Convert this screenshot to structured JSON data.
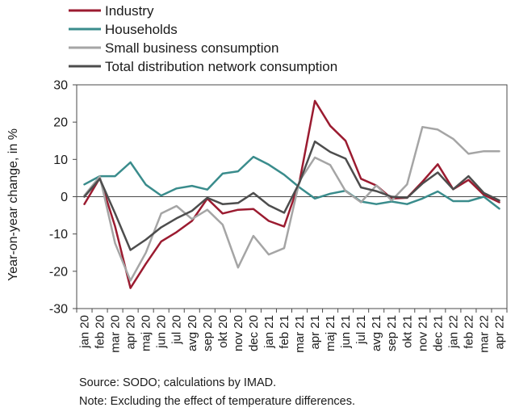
{
  "chart_data": {
    "type": "line",
    "ylabel": "Year-on-year change, in %",
    "ylim": [
      -30,
      30
    ],
    "yticks": [
      30,
      20,
      10,
      0,
      -10,
      -20,
      -30
    ],
    "grid": false,
    "legend_position": "top-left",
    "categories": [
      "jan 20",
      "feb 20",
      "mar 20",
      "apr 20",
      "maj 20",
      "jun 20",
      "jul 20",
      "avg 20",
      "sep 20",
      "okt 20",
      "nov 20",
      "dec 20",
      "jan 21",
      "feb 21",
      "mar 21",
      "apr 21",
      "maj 21",
      "jun 21",
      "jul 21",
      "avg 21",
      "sep 21",
      "okt 21",
      "nov 21",
      "dec 21",
      "jan 22",
      "feb 22",
      "mar 22",
      "apr 22"
    ],
    "series": [
      {
        "name": "Industry",
        "color": "#9b1b30",
        "values": [
          -2,
          5,
          -8,
          -24.5,
          -18,
          -12,
          -9.5,
          -6.5,
          -0.5,
          -4.5,
          -3.5,
          -3.3,
          -6.5,
          -8,
          4,
          25.7,
          19,
          15,
          4.8,
          3,
          -0.5,
          -0.3,
          4,
          8.7,
          2,
          4.5,
          0.5,
          -1.5
        ]
      },
      {
        "name": "Households",
        "color": "#3a8c8c",
        "values": [
          3.3,
          5.5,
          5.5,
          9.2,
          3.2,
          0.3,
          2.2,
          2.9,
          1.9,
          6.2,
          6.8,
          10.7,
          8.6,
          5.9,
          2.5,
          -0.5,
          0.8,
          1.6,
          -1.3,
          -2,
          -1.3,
          -2,
          -0.5,
          1.4,
          -1.2,
          -1.2,
          0,
          -3.2
        ]
      },
      {
        "name": "Small business consumption",
        "color": "#a5a5a5",
        "values": [
          0.3,
          5.4,
          -12.5,
          -22.5,
          -15,
          -4.5,
          -2.5,
          -6,
          -3.5,
          -7.5,
          -19,
          -10.5,
          -15.5,
          -13.8,
          4.2,
          10.5,
          8.5,
          1.5,
          -1.5,
          3,
          -1,
          3.3,
          18.7,
          18,
          15.5,
          11.5,
          12.2,
          12.2
        ]
      },
      {
        "name": "Total distribution network consumption",
        "color": "#4d4d4d",
        "values": [
          0,
          4.8,
          -4.5,
          -14.3,
          -11.5,
          -8.2,
          -5.8,
          -3.8,
          -0.3,
          -2,
          -1.7,
          1,
          -2.3,
          -4.3,
          3.8,
          14.8,
          12,
          10.2,
          2.5,
          1.5,
          0,
          -0.3,
          3.5,
          6.5,
          2,
          5.5,
          1,
          -1
        ]
      }
    ]
  },
  "notes": {
    "source": "Source: SODO; calculations by IMAD.",
    "note": "Note: Excluding the effect of temperature differences."
  }
}
